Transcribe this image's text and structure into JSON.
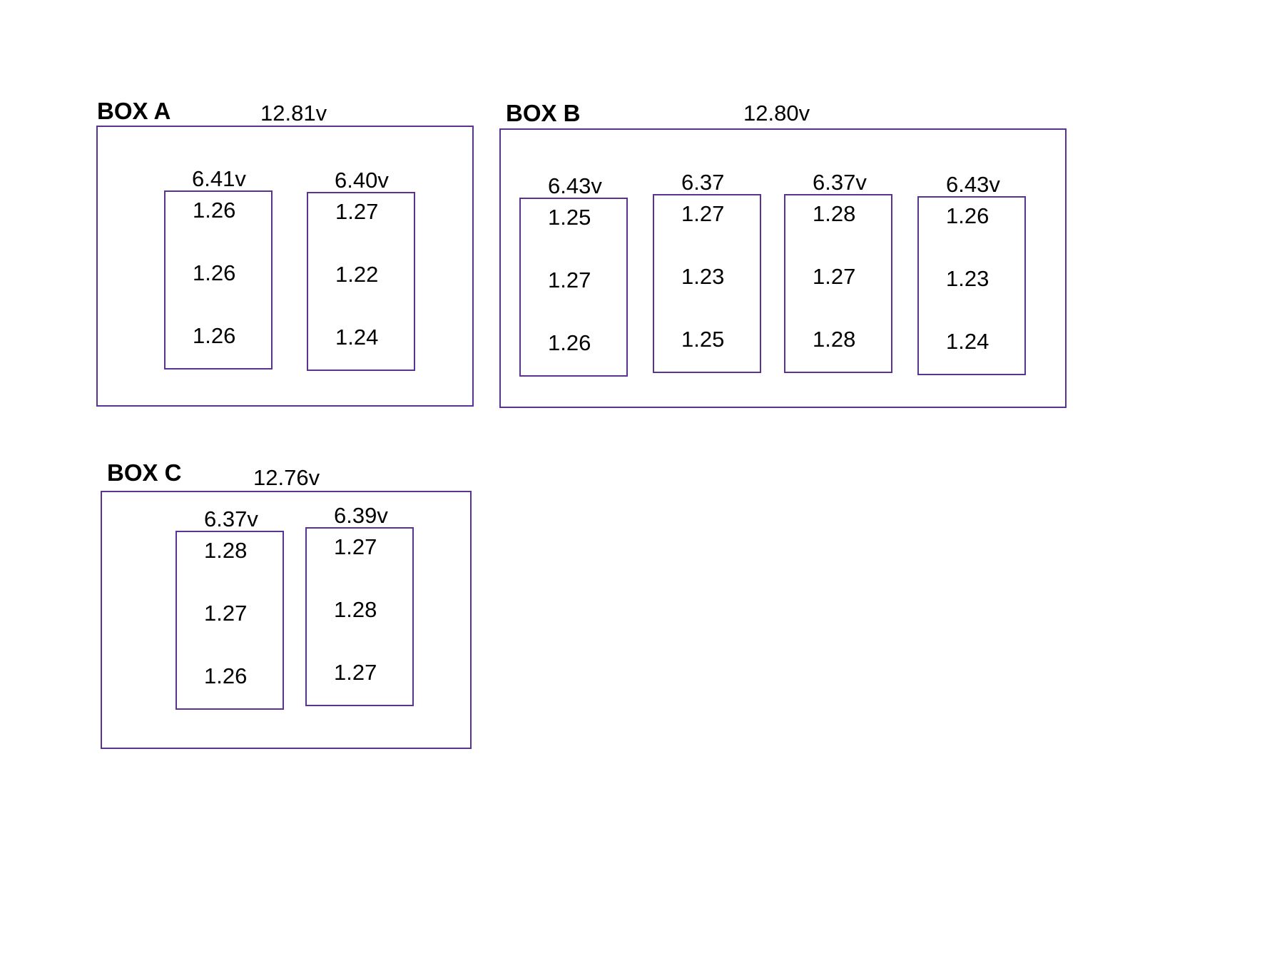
{
  "colors": {
    "frame": "#5a3294",
    "text": "#000000",
    "background": "#ffffff"
  },
  "boxes": [
    {
      "name": "BOX A",
      "voltage": "12.81v",
      "packs": [
        {
          "label": "6.41v",
          "cells": [
            "1.26",
            "1.26",
            "1.26"
          ]
        },
        {
          "label": "6.40v",
          "cells": [
            "1.27",
            "1.22",
            "1.24"
          ]
        }
      ]
    },
    {
      "name": "BOX B",
      "voltage": "12.80v",
      "packs": [
        {
          "label": "6.43v",
          "cells": [
            "1.25",
            "1.27",
            "1.26"
          ]
        },
        {
          "label": "6.37",
          "cells": [
            "1.27",
            "1.23",
            "1.25"
          ]
        },
        {
          "label": "6.37v",
          "cells": [
            "1.28",
            "1.27",
            "1.28"
          ]
        },
        {
          "label": "6.43v",
          "cells": [
            "1.26",
            "1.23",
            "1.24"
          ]
        }
      ]
    },
    {
      "name": "BOX C",
      "voltage": "12.76v",
      "packs": [
        {
          "label": "6.37v",
          "cells": [
            "1.28",
            "1.27",
            "1.26"
          ]
        },
        {
          "label": "6.39v",
          "cells": [
            "1.27",
            "1.28",
            "1.27"
          ]
        }
      ]
    }
  ]
}
